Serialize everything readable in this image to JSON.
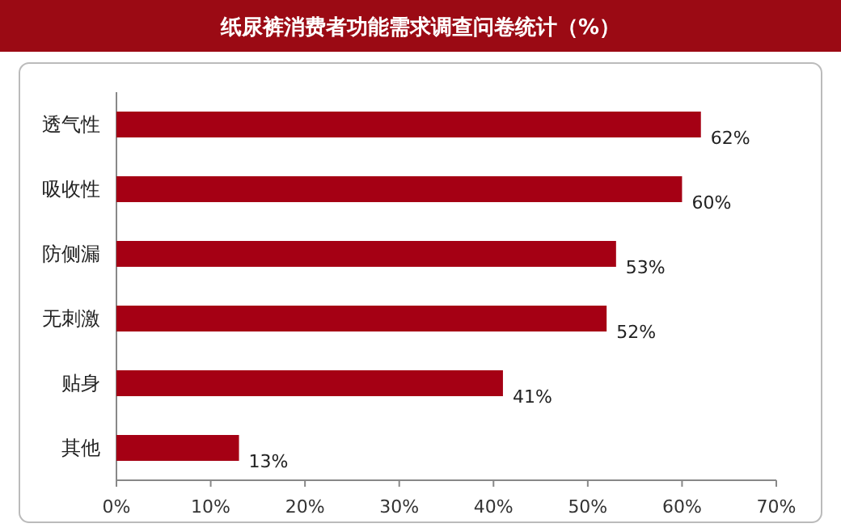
{
  "chart_data": {
    "type": "bar",
    "orientation": "horizontal",
    "title": "纸尿裤消费者功能需求调查问卷统计（%）",
    "categories": [
      "透气性",
      "吸收性",
      "防侧漏",
      "无刺激",
      "贴身",
      "其他"
    ],
    "values": [
      62,
      60,
      53,
      52,
      41,
      13
    ],
    "value_labels": [
      "62%",
      "60%",
      "53%",
      "52%",
      "41%",
      "13%"
    ],
    "color": "#a50014",
    "xlim": [
      0,
      70
    ],
    "xticks": [
      {
        "value": 0,
        "label": "0%"
      },
      {
        "value": 10,
        "label": "10%"
      },
      {
        "value": 20,
        "label": "20%"
      },
      {
        "value": 30,
        "label": "30%"
      },
      {
        "value": 40,
        "label": "40%"
      },
      {
        "value": 50,
        "label": "50%"
      },
      {
        "value": 60,
        "label": "60%"
      },
      {
        "value": 70,
        "label": "70%"
      }
    ]
  }
}
